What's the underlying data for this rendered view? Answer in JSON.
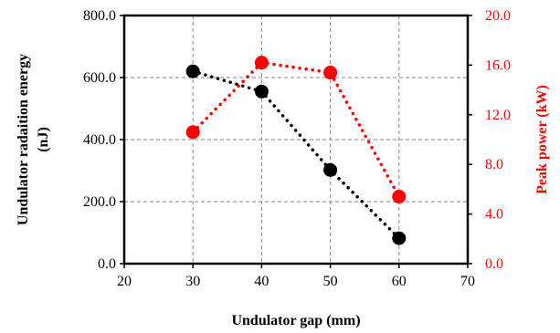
{
  "chart_data": {
    "type": "line",
    "title": "",
    "xlabel": "Undulator gap (mm)",
    "ylabel": "Undulator radaition energy (nJ)",
    "ylabel_lines": [
      "Undulator radaition energy",
      "(nJ)"
    ],
    "y2label": "Peak power (kW)",
    "xlim": [
      20,
      70
    ],
    "ylim": [
      0,
      800
    ],
    "y2lim": [
      0,
      20
    ],
    "x_ticks": [
      20,
      30,
      40,
      50,
      60,
      70
    ],
    "x_tick_labels": [
      "20",
      "30",
      "40",
      "50",
      "60",
      "70"
    ],
    "y_ticks": [
      0,
      200,
      400,
      600,
      800
    ],
    "y_tick_labels": [
      "0.0",
      "200.0",
      "400.0",
      "600.0",
      "800.0"
    ],
    "y2_ticks": [
      0,
      4,
      8,
      12,
      16,
      20
    ],
    "y2_tick_labels": [
      "0.0",
      "4.0",
      "8.0",
      "12.0",
      "16.0",
      "20.0"
    ],
    "grid": true,
    "legend": "none",
    "series": [
      {
        "axis": "left",
        "color": "#000000",
        "x": [
          30,
          40,
          50,
          60
        ],
        "y": [
          620,
          555,
          302,
          82
        ]
      },
      {
        "axis": "right",
        "color": "#ff0000",
        "x": [
          30,
          40,
          50,
          60
        ],
        "y": [
          10.6,
          16.2,
          15.4,
          5.4
        ]
      }
    ],
    "colors": {
      "left_axis": "#000000",
      "right_axis": "#ff0000",
      "grid": "#999999"
    }
  }
}
